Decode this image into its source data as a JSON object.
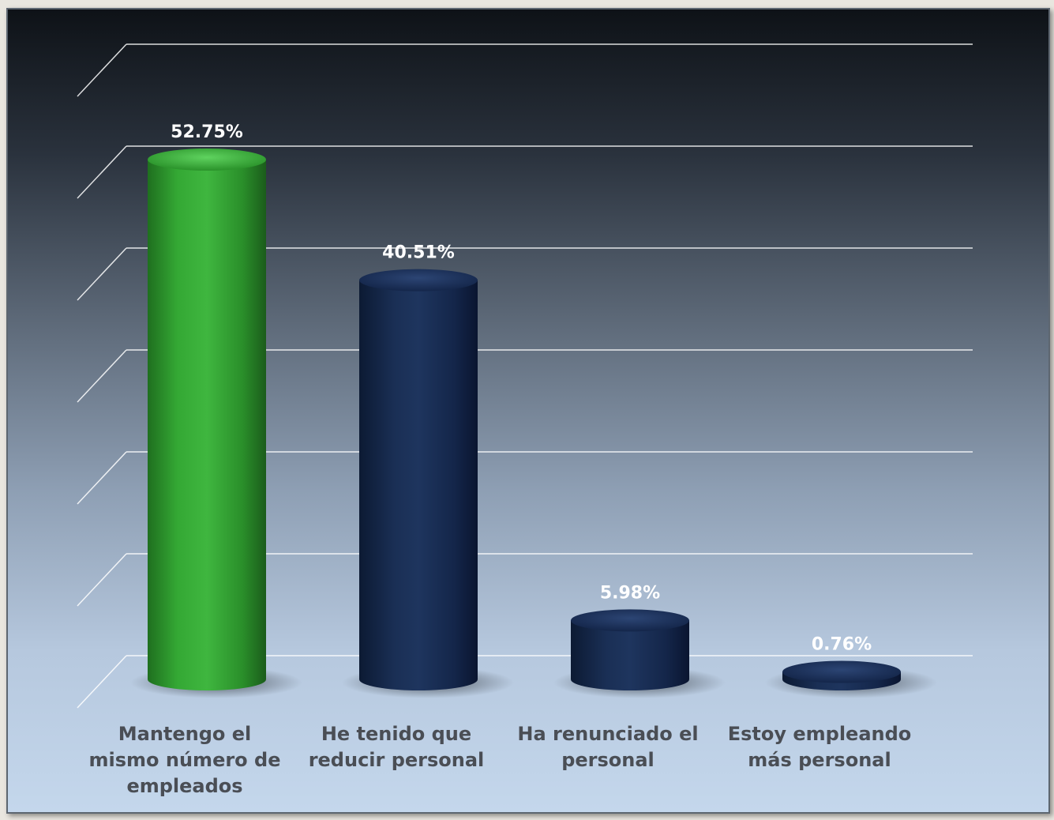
{
  "chart_data": {
    "type": "bar",
    "style": "3d-cylinder",
    "categories": [
      [
        "Mantengo el",
        "mismo número de",
        "empleados"
      ],
      [
        "He tenido que",
        "reducir personal"
      ],
      [
        "Ha renunciado el",
        "personal"
      ],
      [
        "Estoy empleando",
        "más personal"
      ]
    ],
    "values": [
      52.75,
      40.51,
      5.98,
      0.76
    ],
    "value_labels": [
      "52.75%",
      "40.51%",
      "5.98%",
      "0.76%"
    ],
    "colors": [
      "#2e9c2e",
      "#15284a",
      "#15284a",
      "#15284a"
    ],
    "ylim": [
      0,
      60
    ],
    "grid": true,
    "grid_lines": 7
  }
}
